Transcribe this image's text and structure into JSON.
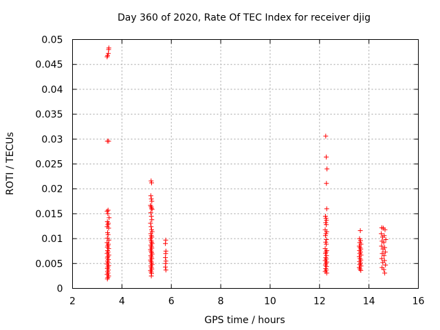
{
  "chart_data": {
    "type": "scatter",
    "title": "Day 360 of 2020, Rate Of TEC Index for receiver djig",
    "xlabel": "GPS time / hours",
    "ylabel": "ROTI / TECUs",
    "xlim": [
      2,
      16
    ],
    "ylim": [
      0,
      0.05
    ],
    "xticks": [
      2,
      4,
      6,
      8,
      10,
      12,
      14,
      16
    ],
    "xtick_labels": [
      "2",
      "4",
      "6",
      "8",
      "10",
      "12",
      "14",
      "16"
    ],
    "yticks": [
      0,
      0.005,
      0.01,
      0.015,
      0.02,
      0.025,
      0.03,
      0.035,
      0.04,
      0.045,
      0.05
    ],
    "ytick_labels": [
      "0",
      "0.005",
      "0.01",
      "0.015",
      "0.02",
      "0.025",
      "0.03",
      "0.035",
      "0.04",
      "0.045",
      "0.05"
    ],
    "grid": true,
    "marker": "+",
    "color": "#ff0000",
    "series": [
      {
        "points": [
          [
            3.4,
            0.0465
          ],
          [
            3.42,
            0.0468
          ],
          [
            3.45,
            0.0472
          ],
          [
            3.46,
            0.048
          ],
          [
            3.47,
            0.0483
          ],
          [
            3.41,
            0.0296
          ],
          [
            3.46,
            0.0296
          ],
          [
            3.4,
            0.0155
          ],
          [
            3.44,
            0.0157
          ],
          [
            3.43,
            0.015
          ],
          [
            3.48,
            0.0142
          ],
          [
            3.41,
            0.0134
          ],
          [
            3.45,
            0.0131
          ],
          [
            3.43,
            0.0128
          ],
          [
            3.4,
            0.0124
          ],
          [
            3.46,
            0.0121
          ],
          [
            3.42,
            0.0112
          ],
          [
            3.44,
            0.0108
          ],
          [
            3.41,
            0.0101
          ],
          [
            3.47,
            0.0097
          ],
          [
            3.4,
            0.0092
          ],
          [
            3.45,
            0.0089
          ],
          [
            3.43,
            0.0086
          ],
          [
            3.41,
            0.0083
          ],
          [
            3.46,
            0.008
          ],
          [
            3.42,
            0.0076
          ],
          [
            3.44,
            0.0073
          ],
          [
            3.4,
            0.007
          ],
          [
            3.47,
            0.0067
          ],
          [
            3.43,
            0.0064
          ],
          [
            3.41,
            0.0061
          ],
          [
            3.45,
            0.0058
          ],
          [
            3.42,
            0.0055
          ],
          [
            3.44,
            0.0052
          ],
          [
            3.4,
            0.0049
          ],
          [
            3.46,
            0.0046
          ],
          [
            3.43,
            0.0043
          ],
          [
            3.41,
            0.004
          ],
          [
            3.45,
            0.0037
          ],
          [
            3.42,
            0.0034
          ],
          [
            3.44,
            0.0031
          ],
          [
            3.4,
            0.0028
          ],
          [
            3.46,
            0.0025
          ],
          [
            3.43,
            0.0022
          ],
          [
            3.41,
            0.0019
          ]
        ]
      },
      {
        "points": [
          [
            5.18,
            0.0216
          ],
          [
            5.2,
            0.0212
          ],
          [
            5.17,
            0.0186
          ],
          [
            5.19,
            0.018
          ],
          [
            5.21,
            0.0175
          ],
          [
            5.16,
            0.0167
          ],
          [
            5.18,
            0.0164
          ],
          [
            5.2,
            0.0161
          ],
          [
            5.22,
            0.0159
          ],
          [
            5.17,
            0.0152
          ],
          [
            5.19,
            0.0145
          ],
          [
            5.21,
            0.0138
          ],
          [
            5.16,
            0.0131
          ],
          [
            5.18,
            0.0124
          ],
          [
            5.2,
            0.0118
          ],
          [
            5.22,
            0.0114
          ],
          [
            5.17,
            0.011
          ],
          [
            5.19,
            0.0106
          ],
          [
            5.21,
            0.0103
          ],
          [
            5.16,
            0.01
          ],
          [
            5.18,
            0.0096
          ],
          [
            5.2,
            0.0093
          ],
          [
            5.22,
            0.009
          ],
          [
            5.17,
            0.0087
          ],
          [
            5.19,
            0.0084
          ],
          [
            5.21,
            0.0081
          ],
          [
            5.16,
            0.0078
          ],
          [
            5.18,
            0.0075
          ],
          [
            5.2,
            0.0072
          ],
          [
            5.22,
            0.0069
          ],
          [
            5.17,
            0.0066
          ],
          [
            5.19,
            0.0063
          ],
          [
            5.21,
            0.006
          ],
          [
            5.16,
            0.0057
          ],
          [
            5.18,
            0.0054
          ],
          [
            5.2,
            0.0051
          ],
          [
            5.22,
            0.0048
          ],
          [
            5.17,
            0.0045
          ],
          [
            5.19,
            0.0042
          ],
          [
            5.21,
            0.0039
          ],
          [
            5.16,
            0.0036
          ],
          [
            5.18,
            0.0033
          ],
          [
            5.2,
            0.003
          ],
          [
            5.19,
            0.0025
          ]
        ]
      },
      {
        "points": [
          [
            5.77,
            0.0097
          ],
          [
            5.76,
            0.009
          ],
          [
            5.78,
            0.0075
          ],
          [
            5.77,
            0.007
          ],
          [
            5.76,
            0.0062
          ],
          [
            5.78,
            0.0055
          ],
          [
            5.77,
            0.005
          ],
          [
            5.76,
            0.0043
          ],
          [
            5.78,
            0.0037
          ]
        ]
      },
      {
        "points": [
          [
            12.25,
            0.0306
          ],
          [
            12.27,
            0.0264
          ],
          [
            12.3,
            0.024
          ],
          [
            12.28,
            0.0211
          ],
          [
            12.29,
            0.016
          ],
          [
            12.24,
            0.0145
          ],
          [
            12.26,
            0.0141
          ],
          [
            12.28,
            0.0137
          ],
          [
            12.25,
            0.0132
          ],
          [
            12.27,
            0.0128
          ],
          [
            12.23,
            0.0118
          ],
          [
            12.29,
            0.0114
          ],
          [
            12.26,
            0.011
          ],
          [
            12.24,
            0.0106
          ],
          [
            12.28,
            0.0098
          ],
          [
            12.25,
            0.0093
          ],
          [
            12.27,
            0.0089
          ],
          [
            12.23,
            0.008
          ],
          [
            12.29,
            0.0076
          ],
          [
            12.26,
            0.0073
          ],
          [
            12.24,
            0.007
          ],
          [
            12.28,
            0.0066
          ],
          [
            12.25,
            0.0062
          ],
          [
            12.27,
            0.0059
          ],
          [
            12.23,
            0.0056
          ],
          [
            12.29,
            0.0053
          ],
          [
            12.26,
            0.005
          ],
          [
            12.24,
            0.0047
          ],
          [
            12.28,
            0.0044
          ],
          [
            12.25,
            0.004
          ],
          [
            12.27,
            0.0037
          ],
          [
            12.23,
            0.0034
          ],
          [
            12.29,
            0.0031
          ]
        ]
      },
      {
        "points": [
          [
            13.65,
            0.0116
          ],
          [
            13.62,
            0.01
          ],
          [
            13.66,
            0.0096
          ],
          [
            13.63,
            0.0092
          ],
          [
            13.68,
            0.0089
          ],
          [
            13.61,
            0.0085
          ],
          [
            13.64,
            0.0082
          ],
          [
            13.67,
            0.0079
          ],
          [
            13.62,
            0.0076
          ],
          [
            13.66,
            0.0073
          ],
          [
            13.63,
            0.007
          ],
          [
            13.68,
            0.0067
          ],
          [
            13.61,
            0.0064
          ],
          [
            13.64,
            0.006
          ],
          [
            13.67,
            0.0057
          ],
          [
            13.62,
            0.0054
          ],
          [
            13.66,
            0.0051
          ],
          [
            13.63,
            0.0048
          ],
          [
            13.68,
            0.0045
          ],
          [
            13.61,
            0.0042
          ],
          [
            13.64,
            0.0039
          ],
          [
            13.67,
            0.0036
          ]
        ]
      },
      {
        "points": [
          [
            14.52,
            0.0122
          ],
          [
            14.58,
            0.0121
          ],
          [
            14.65,
            0.0118
          ],
          [
            14.5,
            0.011
          ],
          [
            14.62,
            0.0106
          ],
          [
            14.55,
            0.0103
          ],
          [
            14.68,
            0.0098
          ],
          [
            14.53,
            0.0095
          ],
          [
            14.6,
            0.0092
          ],
          [
            14.51,
            0.0085
          ],
          [
            14.64,
            0.0082
          ],
          [
            14.57,
            0.0079
          ],
          [
            14.66,
            0.0073
          ],
          [
            14.54,
            0.007
          ],
          [
            14.61,
            0.0066
          ],
          [
            14.52,
            0.006
          ],
          [
            14.63,
            0.0056
          ],
          [
            14.56,
            0.0052
          ],
          [
            14.67,
            0.0047
          ],
          [
            14.53,
            0.0042
          ],
          [
            14.6,
            0.0038
          ],
          [
            14.64,
            0.0031
          ]
        ]
      }
    ]
  }
}
